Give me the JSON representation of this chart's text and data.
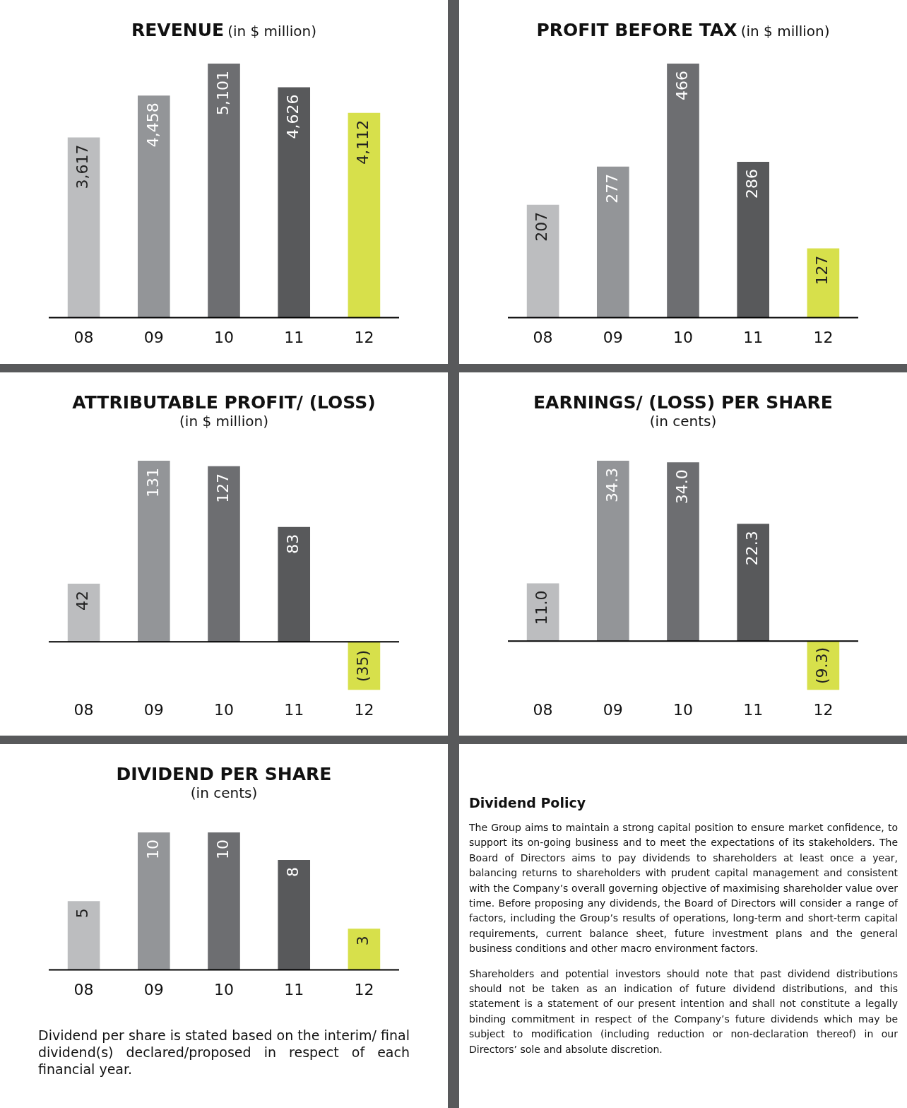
{
  "chart_data": [
    {
      "type": "bar",
      "title": "REVENUE",
      "subtitle": "(in $ million)",
      "categories": [
        "08",
        "09",
        "10",
        "11",
        "12"
      ],
      "values": [
        3617,
        4458,
        5101,
        4626,
        4112
      ],
      "colors": [
        "#bcbdbf",
        "#939598",
        "#6d6e71",
        "#58595b",
        "#d7e04b"
      ],
      "value_labels": [
        "3,617",
        "4,458",
        "5,101",
        "4,626",
        "4,112"
      ]
    },
    {
      "type": "bar",
      "title": "PROFIT BEFORE TAX",
      "subtitle": "(in $ million)",
      "categories": [
        "08",
        "09",
        "10",
        "11",
        "12"
      ],
      "values": [
        207,
        277,
        466,
        286,
        127
      ],
      "colors": [
        "#bcbdbf",
        "#939598",
        "#6d6e71",
        "#58595b",
        "#d7e04b"
      ],
      "value_labels": [
        "207",
        "277",
        "466",
        "286",
        "127"
      ]
    },
    {
      "type": "bar",
      "title": "ATTRIBUTABLE PROFIT/ (LOSS)",
      "subtitle": "(in $ million)",
      "categories": [
        "08",
        "09",
        "10",
        "11",
        "12"
      ],
      "values": [
        42,
        131,
        127,
        83,
        -35
      ],
      "colors": [
        "#bcbdbf",
        "#939598",
        "#6d6e71",
        "#58595b",
        "#d7e04b"
      ],
      "value_labels": [
        "42",
        "131",
        "127",
        "83",
        "(35)"
      ]
    },
    {
      "type": "bar",
      "title": "EARNINGS/ (LOSS) PER SHARE",
      "subtitle": "(in cents)",
      "categories": [
        "08",
        "09",
        "10",
        "11",
        "12"
      ],
      "values": [
        11.0,
        34.3,
        34.0,
        22.3,
        -9.3
      ],
      "colors": [
        "#bcbdbf",
        "#939598",
        "#6d6e71",
        "#58595b",
        "#d7e04b"
      ],
      "value_labels": [
        "11.0",
        "34.3",
        "34.0",
        "22.3",
        "(9.3)"
      ]
    },
    {
      "type": "bar",
      "title": "DIVIDEND PER SHARE",
      "subtitle": "(in cents)",
      "categories": [
        "08",
        "09",
        "10",
        "11",
        "12"
      ],
      "values": [
        5,
        10,
        10,
        8,
        3
      ],
      "colors": [
        "#bcbdbf",
        "#939598",
        "#6d6e71",
        "#58595b",
        "#d7e04b"
      ],
      "value_labels": [
        "5",
        "10",
        "10",
        "8",
        "3"
      ],
      "annotations": [
        "Dividend per share is stated based on the interim/ final dividend(s) declared/proposed in respect of each financial year."
      ]
    },
    {
      "type": "other",
      "title": "Dividend Policy",
      "annotations": [
        "The Group aims to maintain a strong capital position to ensure market confidence, to support its on-going business and to meet the expectations of its stakeholders. The Board of Directors aims to pay dividends to shareholders at least once a year, balancing returns to shareholders with prudent capital management and consistent with the Company’s overall governing objective of maximising shareholder value over time. Before proposing any dividends, the Board of Directors will consider a range of factors, including the Group’s results of operations, long-term and short-term capital requirements, current balance sheet, future investment plans and the general business conditions and other macro environment factors.",
        "Shareholders and potential investors should note that past dividend distributions should not be taken as an indication of future dividend distributions, and this statement is a statement of our present intention and shall not constitute a legally binding commitment in respect of the Company’s future dividends which may be subject to modification (including reduction or non-declaration thereof) in our Directors’ sole and absolute discretion."
      ]
    }
  ]
}
